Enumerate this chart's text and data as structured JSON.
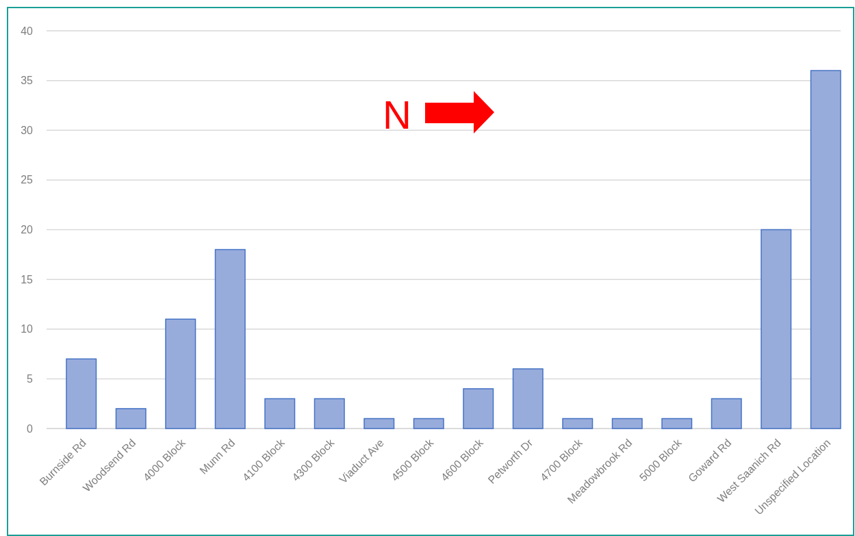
{
  "chart_data": {
    "type": "bar",
    "categories": [
      "Burnside Rd",
      "Woodsend Rd",
      "4000 Block",
      "Munn Rd",
      "4100 Block",
      "4300 Block",
      "Viaduct Ave",
      "4500 Block",
      "4600 Block",
      "Petworth Dr",
      "4700 Block",
      "Meadowbrook Rd",
      "5000 Block",
      "Goward Rd",
      "West Saanich Rd",
      "Unspecified Location"
    ],
    "values": [
      7,
      2,
      11,
      18,
      3,
      3,
      1,
      1,
      4,
      6,
      1,
      1,
      1,
      3,
      20,
      36
    ],
    "color": "#98acdc",
    "ylim": [
      0,
      40
    ],
    "yticks": [
      0,
      5,
      10,
      15,
      20,
      25,
      30,
      35,
      40
    ],
    "grid": "y",
    "annotations": [
      "N"
    ]
  }
}
